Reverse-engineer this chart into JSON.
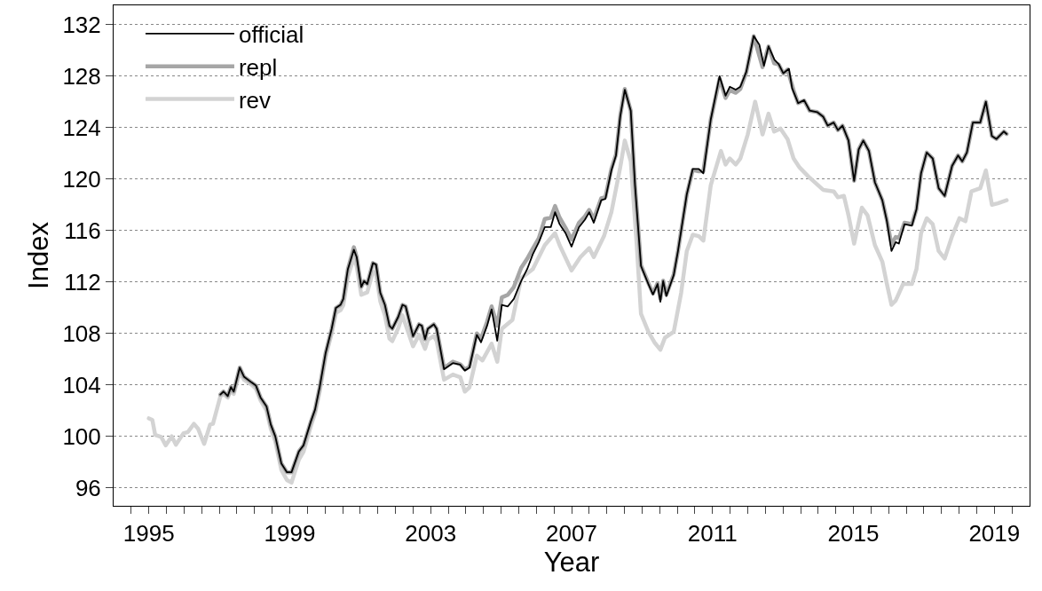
{
  "chart_data": {
    "type": "line",
    "xlabel": "Year",
    "ylabel": "Index",
    "xlim": [
      1994,
      2020
    ],
    "ylim": [
      94.6,
      133.5
    ],
    "xticks": [
      {
        "value": 1994.5,
        "label": null
      },
      1995,
      {
        "value": 1995.5,
        "label": null
      },
      {
        "value": 1996,
        "label": null
      },
      {
        "value": 1996.5,
        "label": null
      },
      {
        "value": 1997,
        "label": null
      },
      {
        "value": 1997.5,
        "label": null
      },
      {
        "value": 1998,
        "label": null
      },
      {
        "value": 1998.5,
        "label": null
      },
      1999,
      {
        "value": 1999.5,
        "label": null
      },
      {
        "value": 2000,
        "label": null
      },
      {
        "value": 2000.5,
        "label": null
      },
      {
        "value": 2001,
        "label": null
      },
      {
        "value": 2001.5,
        "label": null
      },
      {
        "value": 2002,
        "label": null
      },
      {
        "value": 2002.5,
        "label": null
      },
      2003,
      {
        "value": 2003.5,
        "label": null
      },
      {
        "value": 2004,
        "label": null
      },
      {
        "value": 2004.5,
        "label": null
      },
      {
        "value": 2005,
        "label": null
      },
      {
        "value": 2005.5,
        "label": null
      },
      {
        "value": 2006,
        "label": null
      },
      {
        "value": 2006.5,
        "label": null
      },
      2007,
      {
        "value": 2007.5,
        "label": null
      },
      {
        "value": 2008,
        "label": null
      },
      {
        "value": 2008.5,
        "label": null
      },
      {
        "value": 2009,
        "label": null
      },
      {
        "value": 2009.5,
        "label": null
      },
      {
        "value": 2010,
        "label": null
      },
      {
        "value": 2010.5,
        "label": null
      },
      2011,
      {
        "value": 2011.5,
        "label": null
      },
      {
        "value": 2012,
        "label": null
      },
      {
        "value": 2012.5,
        "label": null
      },
      {
        "value": 2013,
        "label": null
      },
      {
        "value": 2013.5,
        "label": null
      },
      {
        "value": 2014,
        "label": null
      },
      {
        "value": 2014.5,
        "label": null
      },
      2015,
      {
        "value": 2015.5,
        "label": null
      },
      {
        "value": 2016,
        "label": null
      },
      {
        "value": 2016.5,
        "label": null
      },
      {
        "value": 2017,
        "label": null
      },
      {
        "value": 2017.5,
        "label": null
      },
      {
        "value": 2018,
        "label": null
      },
      {
        "value": 2018.5,
        "label": null
      },
      2019,
      {
        "value": 2019.5,
        "label": null
      }
    ],
    "yticks": [
      96,
      100,
      104,
      108,
      112,
      116,
      120,
      124,
      128,
      132
    ],
    "grid": "y",
    "legend": "top left",
    "marker": "none",
    "line_style": "solid",
    "series": [
      {
        "name": "rev",
        "color": "#d3d3d3",
        "x": [
          1995.0,
          1995.1,
          1995.18,
          1995.35,
          1995.48,
          1995.65,
          1995.77,
          1995.98,
          1996.11,
          1996.28,
          1996.4,
          1996.57,
          1996.74,
          1996.82,
          1997.03,
          1997.12,
          1997.24,
          1997.33,
          1997.41,
          1997.58,
          1997.7,
          1997.92,
          1998.04,
          1998.17,
          1998.34,
          1998.46,
          1998.59,
          1998.76,
          1998.92,
          1999.05,
          1999.26,
          1999.39,
          1999.6,
          1999.72,
          1999.85,
          2000.02,
          2000.19,
          2000.31,
          2000.44,
          2000.52,
          2000.65,
          2000.82,
          2000.9,
          2001.03,
          2001.2,
          2001.36,
          2001.45,
          2001.57,
          2001.7,
          2001.83,
          2001.91,
          2002.08,
          2002.2,
          2002.5,
          2002.67,
          2002.84,
          2002.92,
          2003.09,
          2003.17,
          2003.38,
          2003.63,
          2003.84,
          2003.97,
          2004.1,
          2004.31,
          2004.47,
          2004.73,
          2004.89,
          2005.02,
          2005.32,
          2005.57,
          2005.9,
          2006.24,
          2006.53,
          2006.66,
          2006.998,
          2007.25,
          2007.5,
          2007.63,
          2007.92,
          2008.13,
          2008.38,
          2008.51,
          2008.68,
          2008.85,
          2008.97,
          2009.18,
          2009.35,
          2009.52,
          2009.65,
          2009.9,
          2010.11,
          2010.27,
          2010.44,
          2010.61,
          2010.74,
          2010.95,
          2011.24,
          2011.37,
          2011.49,
          2011.66,
          2011.79,
          2012.0,
          2012.21,
          2012.42,
          2012.59,
          2012.75,
          2012.93,
          2013.13,
          2013.3,
          2013.47,
          2013.72,
          2014.14,
          2014.44,
          2014.56,
          2014.73,
          2014.86,
          2015.02,
          2015.24,
          2015.4,
          2015.61,
          2015.82,
          2015.95,
          2016.08,
          2016.2,
          2016.41,
          2016.66,
          2016.79,
          2016.92,
          2017.08,
          2017.25,
          2017.42,
          2017.59,
          2017.8,
          2018.01,
          2018.18,
          2018.35,
          2018.6,
          2018.76,
          2018.93,
          2019.1,
          2019.35
        ],
        "values": [
          101.4,
          101.27,
          100.11,
          99.95,
          99.3,
          100.0,
          99.35,
          100.23,
          100.34,
          100.97,
          100.58,
          99.41,
          100.92,
          100.97,
          103.1,
          103.3,
          103.0,
          103.6,
          103.3,
          105.0,
          104.4,
          104.0,
          103.7,
          102.8,
          102.0,
          100.6,
          99.6,
          97.4,
          96.6,
          96.4,
          98.2,
          98.8,
          100.8,
          101.8,
          103.5,
          106.2,
          108.0,
          109.6,
          109.8,
          110.2,
          112.4,
          113.9,
          113.2,
          111.0,
          111.2,
          112.8,
          112.6,
          110.5,
          109.4,
          107.6,
          107.4,
          108.4,
          109.4,
          107.0,
          107.9,
          106.8,
          107.5,
          107.8,
          107.4,
          104.4,
          104.8,
          104.6,
          103.48,
          103.8,
          106.27,
          105.9,
          107.2,
          105.8,
          108.36,
          109.05,
          112.3,
          113.0,
          114.86,
          115.79,
          114.86,
          112.89,
          113.93,
          114.63,
          113.93,
          115.56,
          117.42,
          120.9,
          122.99,
          121.37,
          114.86,
          109.52,
          108.13,
          107.31,
          106.73,
          107.66,
          108.13,
          111.15,
          114.4,
          115.67,
          115.56,
          115.21,
          119.51,
          122.18,
          121.13,
          121.6,
          121.13,
          121.6,
          123.46,
          126.01,
          123.46,
          125.08,
          123.69,
          123.92,
          123.11,
          121.6,
          120.9,
          120.2,
          119.16,
          119.04,
          118.58,
          118.69,
          117.18,
          114.98,
          117.77,
          117.18,
          114.86,
          113.58,
          111.84,
          110.22,
          110.56,
          111.84,
          111.84,
          113.0,
          115.79,
          116.95,
          116.49,
          114.4,
          113.82,
          115.56,
          116.95,
          116.72,
          119.04,
          119.28,
          120.67,
          118.0,
          118.11,
          118.35
        ]
      },
      {
        "name": "repl",
        "color": "#a6a6a6",
        "x": [
          1997.03,
          1997.12,
          1997.24,
          1997.33,
          1997.41,
          1997.58,
          1997.7,
          1997.92,
          1998.04,
          1998.17,
          1998.34,
          1998.46,
          1998.59,
          1998.76,
          1998.92,
          1999.05,
          1999.26,
          1999.39,
          1999.6,
          1999.72,
          1999.85,
          2000.02,
          2000.19,
          2000.31,
          2000.44,
          2000.52,
          2000.65,
          2000.82,
          2000.9,
          2001.03,
          2001.11,
          2001.2,
          2001.36,
          2001.45,
          2001.57,
          2001.7,
          2001.83,
          2001.91,
          2002.08,
          2002.2,
          2002.29,
          2002.5,
          2002.67,
          2002.75,
          2002.84,
          2002.92,
          2003.09,
          2003.17,
          2003.38,
          2003.63,
          2003.84,
          2003.97,
          2004.1,
          2004.31,
          2004.43,
          2004.6,
          2004.73,
          2004.89,
          2005.02,
          2005.19,
          2005.36,
          2005.57,
          2005.74,
          2005.9,
          2006.07,
          2006.24,
          2006.41,
          2006.53,
          2006.66,
          2006.83,
          2006.998,
          2007.21,
          2007.38,
          2007.5,
          2007.63,
          2007.84,
          2007.96,
          2008.13,
          2008.26,
          2008.38,
          2008.51,
          2008.68,
          2008.8,
          2008.97,
          2009.18,
          2009.31,
          2009.44,
          2009.52,
          2009.6,
          2009.69,
          2009.9,
          2010.02,
          2010.27,
          2010.44,
          2010.61,
          2010.74,
          2010.95,
          2011.2,
          2011.37,
          2011.49,
          2011.66,
          2011.79,
          2011.96,
          2012.17,
          2012.42,
          2012.59,
          2012.75,
          2012.88,
          2013.01,
          2013.13,
          2013.3,
          2013.43,
          2013.6,
          2013.76,
          2013.97,
          2014.14,
          2014.27,
          2014.44,
          2014.56,
          2014.69,
          2014.86,
          2015.02,
          2015.15,
          2015.28,
          2015.44,
          2015.61,
          2015.82,
          2015.95,
          2016.08,
          2016.2,
          2016.29,
          2016.45,
          2016.66,
          2016.79,
          2016.92,
          2017.08,
          2017.25,
          2017.42,
          2017.59,
          2017.8,
          2017.97,
          2018.09,
          2018.22,
          2018.39,
          2018.6,
          2018.76,
          2018.93,
          2019.06,
          2019.14,
          2019.27,
          2019.35
        ],
        "values": [
          103.25,
          103.48,
          103.13,
          103.83,
          103.48,
          105.34,
          104.64,
          104.18,
          103.94,
          103.02,
          102.32,
          100.92,
          99.99,
          97.9,
          97.21,
          97.21,
          98.83,
          99.3,
          101.16,
          102.09,
          103.83,
          106.5,
          108.36,
          109.98,
          110.22,
          110.68,
          113.0,
          114.7,
          113.93,
          111.61,
          112.07,
          111.84,
          113.47,
          113.35,
          111.15,
          110.22,
          108.59,
          108.36,
          109.29,
          110.22,
          110.1,
          107.78,
          108.71,
          108.59,
          107.54,
          108.36,
          108.71,
          108.36,
          105.3,
          105.8,
          105.6,
          105.2,
          105.4,
          108.0,
          107.6,
          108.9,
          110.1,
          108.6,
          110.8,
          111.0,
          111.6,
          113.1,
          113.8,
          114.6,
          115.4,
          116.9,
          117.0,
          117.9,
          117.0,
          116.2,
          115.3,
          116.6,
          117.1,
          117.6,
          116.9,
          118.5,
          118.6,
          120.8,
          121.9,
          124.9,
          127.0,
          125.3,
          119.5,
          113.3,
          111.9,
          111.1,
          111.9,
          110.7,
          112.1,
          111.0,
          112.6,
          114.4,
          118.8,
          120.7,
          120.6,
          120.6,
          124.6,
          127.8,
          126.3,
          126.9,
          126.7,
          127.0,
          128.3,
          131.1,
          128.7,
          130.3,
          129.0,
          128.9,
          128.2,
          128.5,
          126.9,
          125.9,
          126.1,
          125.3,
          125.2,
          124.85,
          124.15,
          124.39,
          123.8,
          124.15,
          122.99,
          119.86,
          122.3,
          122.99,
          122.18,
          119.74,
          118.35,
          116.8,
          114.9,
          115.5,
          115.4,
          116.6,
          116.5,
          117.65,
          120.44,
          122.06,
          121.6,
          119.28,
          118.69,
          121.02,
          121.83,
          121.37,
          122.06,
          124.39,
          124.39,
          126.01,
          123.34,
          123.11,
          123.34,
          123.69,
          123.5
        ]
      },
      {
        "name": "official",
        "color": "#000000",
        "x": [
          1997.03,
          1997.12,
          1997.24,
          1997.33,
          1997.41,
          1997.58,
          1997.7,
          1997.92,
          1998.04,
          1998.17,
          1998.34,
          1998.46,
          1998.59,
          1998.76,
          1998.92,
          1999.05,
          1999.26,
          1999.39,
          1999.6,
          1999.72,
          1999.85,
          2000.02,
          2000.19,
          2000.31,
          2000.44,
          2000.52,
          2000.65,
          2000.82,
          2000.9,
          2001.03,
          2001.11,
          2001.2,
          2001.36,
          2001.45,
          2001.57,
          2001.7,
          2001.83,
          2001.91,
          2002.08,
          2002.2,
          2002.29,
          2002.5,
          2002.67,
          2002.75,
          2002.84,
          2002.92,
          2003.09,
          2003.17,
          2003.38,
          2003.63,
          2003.84,
          2003.97,
          2004.1,
          2004.31,
          2004.43,
          2004.6,
          2004.73,
          2004.89,
          2005.02,
          2005.19,
          2005.36,
          2005.57,
          2005.74,
          2005.9,
          2006.07,
          2006.24,
          2006.41,
          2006.53,
          2006.66,
          2006.83,
          2006.998,
          2007.21,
          2007.38,
          2007.5,
          2007.63,
          2007.84,
          2007.96,
          2008.13,
          2008.26,
          2008.38,
          2008.51,
          2008.68,
          2008.8,
          2008.97,
          2009.18,
          2009.31,
          2009.44,
          2009.52,
          2009.6,
          2009.69,
          2009.9,
          2010.02,
          2010.27,
          2010.44,
          2010.61,
          2010.74,
          2010.95,
          2011.2,
          2011.37,
          2011.49,
          2011.66,
          2011.79,
          2011.96,
          2012.17,
          2012.33,
          2012.46,
          2012.59,
          2012.76,
          2012.88,
          2013.01,
          2013.17,
          2013.26,
          2013.43,
          2013.6,
          2013.76,
          2013.97,
          2014.14,
          2014.27,
          2014.44,
          2014.56,
          2014.69,
          2014.86,
          2015.02,
          2015.15,
          2015.28,
          2015.44,
          2015.61,
          2015.82,
          2015.95,
          2016.08,
          2016.2,
          2016.29,
          2016.45,
          2016.66,
          2016.79,
          2016.92,
          2017.08,
          2017.25,
          2017.42,
          2017.59,
          2017.8,
          2017.97,
          2018.09,
          2018.22,
          2018.39,
          2018.6,
          2018.76,
          2018.93,
          2019.06,
          2019.14,
          2019.27,
          2019.35
        ],
        "values": [
          103.25,
          103.48,
          103.13,
          103.83,
          103.48,
          105.34,
          104.64,
          104.18,
          103.94,
          103.02,
          102.32,
          100.92,
          99.99,
          97.9,
          97.21,
          97.21,
          98.83,
          99.3,
          101.16,
          102.09,
          103.83,
          106.5,
          108.36,
          109.98,
          110.22,
          110.68,
          113.0,
          114.51,
          113.93,
          111.61,
          112.07,
          111.84,
          113.47,
          113.35,
          111.15,
          110.22,
          108.59,
          108.36,
          109.29,
          110.22,
          110.1,
          107.78,
          108.71,
          108.59,
          107.54,
          108.36,
          108.71,
          108.36,
          105.22,
          105.69,
          105.57,
          105.11,
          105.34,
          107.89,
          107.31,
          108.59,
          109.87,
          107.43,
          110.22,
          110.1,
          110.68,
          112.07,
          113.0,
          114.16,
          115.09,
          116.26,
          116.26,
          117.42,
          116.49,
          115.79,
          114.75,
          116.26,
          116.84,
          117.42,
          116.6,
          118.35,
          118.46,
          120.67,
          121.83,
          124.85,
          126.94,
          125.31,
          119.51,
          113.24,
          111.84,
          111.03,
          111.84,
          110.45,
          112.07,
          110.91,
          112.54,
          114.4,
          118.81,
          120.79,
          120.79,
          120.44,
          124.62,
          127.99,
          126.48,
          127.17,
          126.94,
          127.17,
          128.34,
          131.12,
          130.43,
          128.8,
          130.31,
          129.26,
          128.92,
          128.22,
          128.57,
          127.06,
          125.9,
          126.13,
          125.31,
          125.2,
          124.85,
          124.15,
          124.39,
          123.8,
          124.15,
          122.99,
          119.86,
          122.3,
          122.99,
          122.18,
          119.74,
          118.35,
          116.72,
          114.4,
          115.09,
          114.98,
          116.49,
          116.37,
          117.65,
          120.44,
          122.06,
          121.6,
          119.28,
          118.69,
          121.02,
          121.83,
          121.37,
          122.06,
          124.39,
          124.39,
          126.01,
          123.34,
          123.11,
          123.34,
          123.69,
          123.5
        ]
      }
    ]
  }
}
